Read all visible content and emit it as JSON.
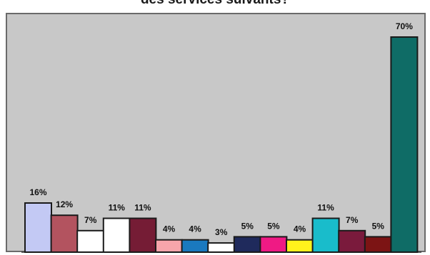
{
  "chart_data": {
    "type": "bar",
    "title": "des services suivants?",
    "xlabel": "",
    "ylabel": "",
    "ylim": [
      0,
      70
    ],
    "grid": false,
    "legend": "none",
    "values": [
      16,
      12,
      7,
      11,
      11,
      4,
      4,
      3,
      5,
      5,
      4,
      11,
      7,
      5,
      70
    ],
    "labels": [
      "16%",
      "12%",
      "7%",
      "11%",
      "11%",
      "4%",
      "4%",
      "3%",
      "5%",
      "5%",
      "4%",
      "11%",
      "7%",
      "5%",
      "70%"
    ],
    "colors": [
      "#c3c9f4",
      "#b3535f",
      "#ffffff",
      "#ffffff",
      "#751c35",
      "#f7a5ab",
      "#1a79bf",
      "#ffffff",
      "#1f2a5c",
      "#ef1a84",
      "#fff21c",
      "#19bccb",
      "#7a1a3c",
      "#7c1414",
      "#0f6c66"
    ],
    "background": "#c8c8c8"
  }
}
